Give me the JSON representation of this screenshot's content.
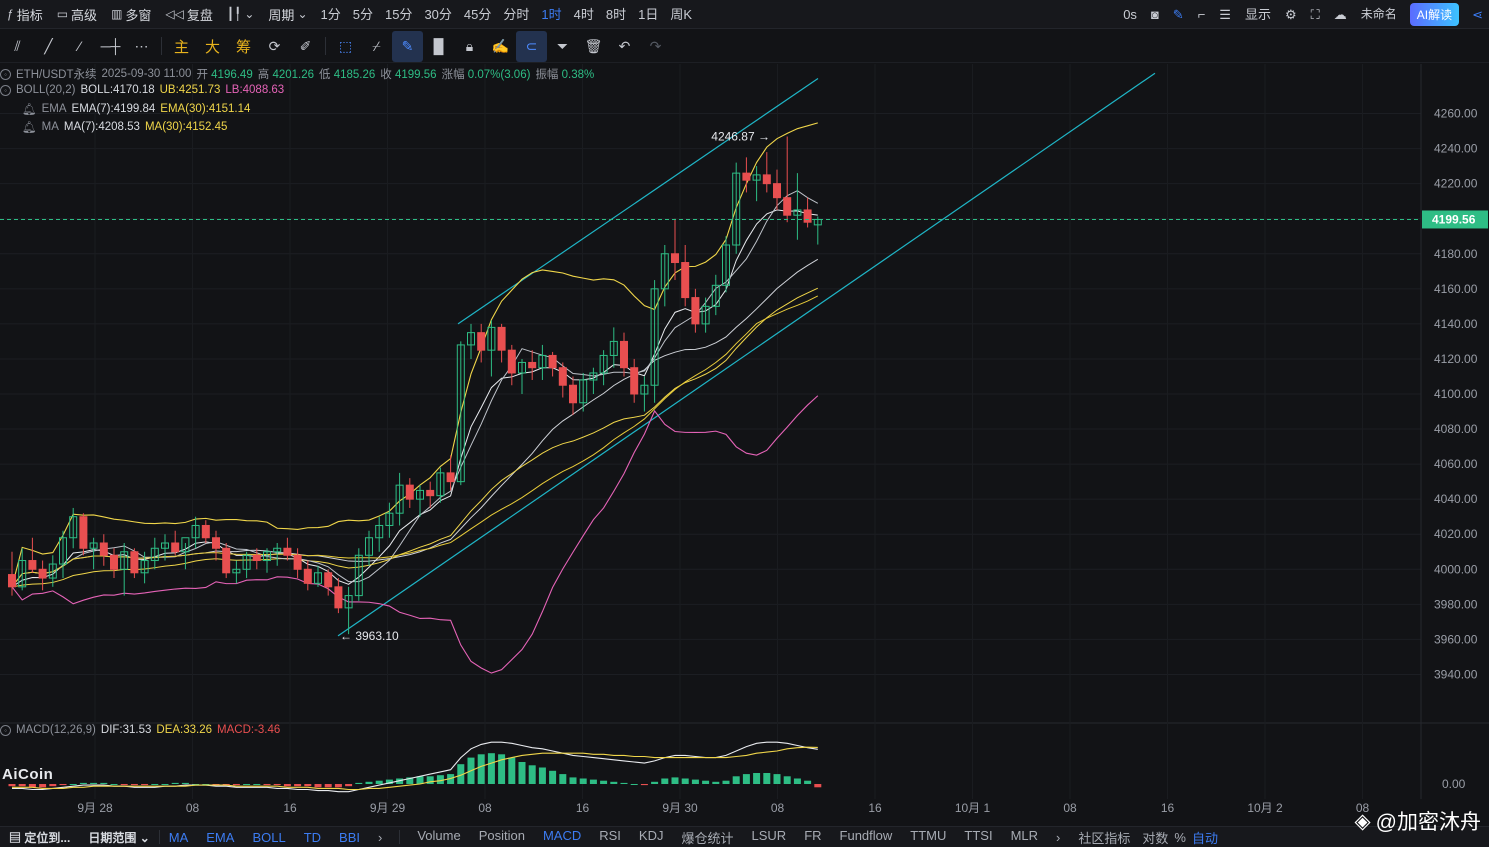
{
  "topbar": {
    "indicators": "指标",
    "advanced": "高级",
    "multiwindow": "多窗",
    "replay": "复盘",
    "period": "周期",
    "timeframes": [
      "1分",
      "5分",
      "15分",
      "30分",
      "45分",
      "分时",
      "1时",
      "4时",
      "8时",
      "1日",
      "周K"
    ],
    "active_timeframe": "1时",
    "countdown": "0s",
    "display": "显示",
    "unnamed": "未命名",
    "ai_read": "AI解读"
  },
  "tools": {
    "main": "主",
    "large": "大",
    "chips": "筹"
  },
  "legend": {
    "symbol": "ETH/USDT永续",
    "datetime": "2025-09-30 11:00",
    "open_label": "开",
    "open": "4196.49",
    "high_label": "高",
    "high": "4201.26",
    "low_label": "低",
    "low": "4185.26",
    "close_label": "收",
    "close": "4199.56",
    "change_label": "涨幅",
    "change": "0.07%(3.06)",
    "amp_label": "振幅",
    "amp": "0.38%",
    "boll_name": "BOLL(20,2)",
    "boll": "BOLL:4170.18",
    "ub": "UB:4251.73",
    "lb": "LB:4088.63",
    "ema_name": "EMA",
    "ema7": "EMA(7):4199.84",
    "ema30": "EMA(30):4151.14",
    "ma_name": "MA",
    "ma7": "MA(7):4208.53",
    "ma30": "MA(30):4152.45",
    "macd_name": "MACD(12,26,9)",
    "dif": "DIF:31.53",
    "dea": "DEA:33.26",
    "macd": "MACD:-3.46"
  },
  "annotations": {
    "high_mark": "4246.87 →",
    "low_mark": "← 3963.10",
    "last_price": "4199.56"
  },
  "price_axis": [
    "4260.00",
    "4240.00",
    "4220.00",
    "4200.00",
    "4180.00",
    "4160.00",
    "4140.00",
    "4120.00",
    "4100.00",
    "4080.00",
    "4060.00",
    "4040.00",
    "4020.00",
    "4000.00",
    "3980.00",
    "3960.00",
    "3940.00"
  ],
  "macd_axis": [
    "0.00"
  ],
  "time_axis": [
    "9月 28",
    "08",
    "16",
    "9月 29",
    "08",
    "16",
    "9月 30",
    "08",
    "16",
    "10月 1",
    "08",
    "16",
    "10月 2",
    "08"
  ],
  "bottombar": {
    "locate": "定位到...",
    "date_range": "日期范围",
    "tabs": [
      "MA",
      "EMA",
      "BOLL",
      "TD",
      "BBI"
    ],
    "sub_tabs": [
      "Volume",
      "Position",
      "MACD",
      "RSI",
      "KDJ",
      "爆仓统计",
      "LSUR",
      "FR",
      "Fundflow",
      "TTMU",
      "TTSI",
      "MLR"
    ],
    "community": "社区指标",
    "log": "对数",
    "pct": "%",
    "auto": "自动"
  },
  "brand": {
    "logo": "AiCoin",
    "watermark": "@加密沐舟"
  },
  "colors": {
    "up": "#2ebd85",
    "down": "#e84f50",
    "accent": "#3c7cf2",
    "channel": "#1fb5c6",
    "ub_line": "#f0d64a",
    "lb_line": "#e563b7"
  },
  "chart_data": {
    "type": "candlestick",
    "symbol": "ETH/USDT永续",
    "interval": "1h",
    "ylim": [
      3930,
      4270
    ],
    "last_price": 4199.56,
    "high_mark": 4246.87,
    "low_mark": 3963.1,
    "candles": [
      [
        3997,
        4010,
        3985,
        3990
      ],
      [
        3990,
        4012,
        3988,
        4005
      ],
      [
        4005,
        4018,
        3998,
        4000
      ],
      [
        4000,
        4005,
        3988,
        3995
      ],
      [
        3995,
        4008,
        3990,
        4003
      ],
      [
        4003,
        4022,
        3995,
        4018
      ],
      [
        4018,
        4035,
        4012,
        4030
      ],
      [
        4030,
        4032,
        4008,
        4012
      ],
      [
        4012,
        4018,
        4000,
        4015
      ],
      [
        4015,
        4020,
        4002,
        4008
      ],
      [
        4008,
        4012,
        3995,
        4000
      ],
      [
        4000,
        4015,
        3985,
        4010
      ],
      [
        4010,
        4012,
        3995,
        3998
      ],
      [
        3998,
        4010,
        3992,
        4005
      ],
      [
        4005,
        4018,
        4000,
        4012
      ],
      [
        4012,
        4020,
        4005,
        4015
      ],
      [
        4015,
        4022,
        4008,
        4010
      ],
      [
        4010,
        4015,
        4000,
        4018
      ],
      [
        4018,
        4030,
        4012,
        4025
      ],
      [
        4025,
        4028,
        4015,
        4018
      ],
      [
        4018,
        4022,
        4005,
        4012
      ],
      [
        4012,
        4015,
        3995,
        3998
      ],
      [
        3998,
        4005,
        3992,
        4000
      ],
      [
        4000,
        4010,
        3995,
        4008
      ],
      [
        4008,
        4012,
        4000,
        4005
      ],
      [
        4005,
        4012,
        3998,
        4010
      ],
      [
        4010,
        4015,
        4002,
        4012
      ],
      [
        4012,
        4018,
        4005,
        4008
      ],
      [
        4008,
        4012,
        3995,
        4000
      ],
      [
        4000,
        4005,
        3988,
        3992
      ],
      [
        3992,
        4002,
        3990,
        3998
      ],
      [
        3998,
        4000,
        3985,
        3990
      ],
      [
        3990,
        3995,
        3975,
        3978
      ],
      [
        3978,
        3990,
        3963,
        3985
      ],
      [
        3985,
        4012,
        3982,
        4008
      ],
      [
        4008,
        4022,
        4002,
        4018
      ],
      [
        4018,
        4030,
        4010,
        4025
      ],
      [
        4025,
        4038,
        4018,
        4032
      ],
      [
        4032,
        4055,
        4025,
        4048
      ],
      [
        4048,
        4052,
        4035,
        4040
      ],
      [
        4040,
        4048,
        4030,
        4045
      ],
      [
        4045,
        4050,
        4035,
        4042
      ],
      [
        4042,
        4058,
        4038,
        4055
      ],
      [
        4055,
        4065,
        4045,
        4050
      ],
      [
        4050,
        4130,
        4048,
        4128
      ],
      [
        4128,
        4140,
        4120,
        4135
      ],
      [
        4135,
        4140,
        4118,
        4125
      ],
      [
        4125,
        4142,
        4110,
        4138
      ],
      [
        4138,
        4140,
        4118,
        4125
      ],
      [
        4125,
        4128,
        4105,
        4112
      ],
      [
        4112,
        4120,
        4100,
        4118
      ],
      [
        4118,
        4125,
        4108,
        4115
      ],
      [
        4115,
        4128,
        4108,
        4122
      ],
      [
        4122,
        4124,
        4110,
        4115
      ],
      [
        4115,
        4118,
        4098,
        4105
      ],
      [
        4105,
        4110,
        4088,
        4095
      ],
      [
        4095,
        4112,
        4090,
        4108
      ],
      [
        4108,
        4115,
        4100,
        4112
      ],
      [
        4112,
        4125,
        4105,
        4122
      ],
      [
        4122,
        4138,
        4115,
        4130
      ],
      [
        4130,
        4135,
        4110,
        4115
      ],
      [
        4115,
        4120,
        4095,
        4100
      ],
      [
        4100,
        4110,
        4090,
        4105
      ],
      [
        4105,
        4165,
        4095,
        4160
      ],
      [
        4160,
        4185,
        4150,
        4180
      ],
      [
        4180,
        4200,
        4165,
        4175
      ],
      [
        4175,
        4185,
        4150,
        4155
      ],
      [
        4155,
        4160,
        4135,
        4140
      ],
      [
        4140,
        4155,
        4135,
        4150
      ],
      [
        4150,
        4168,
        4145,
        4162
      ],
      [
        4162,
        4190,
        4158,
        4185
      ],
      [
        4185,
        4232,
        4180,
        4226
      ],
      [
        4226,
        4235,
        4215,
        4222
      ],
      [
        4222,
        4230,
        4210,
        4225
      ],
      [
        4225,
        4238,
        4215,
        4220
      ],
      [
        4220,
        4228,
        4205,
        4212
      ],
      [
        4212,
        4246.87,
        4198,
        4202
      ],
      [
        4202,
        4226,
        4188,
        4205
      ],
      [
        4205,
        4212,
        4195,
        4198
      ],
      [
        4196.49,
        4201.26,
        4185.26,
        4199.56
      ]
    ],
    "macd_hist": [
      -2,
      -2,
      -3,
      -3,
      -2,
      -1,
      0,
      1,
      1,
      1,
      0,
      -1,
      -1,
      -1,
      0,
      0,
      1,
      1,
      0,
      0,
      -1,
      -1,
      -1,
      0,
      0,
      -1,
      -1,
      -2,
      -2,
      -2,
      -3,
      -3,
      -3,
      -2,
      1,
      2,
      3,
      4,
      5,
      6,
      7,
      7,
      8,
      9,
      18,
      24,
      27,
      28,
      27,
      24,
      20,
      17,
      15,
      12,
      9,
      6,
      5,
      4,
      3,
      2,
      1,
      0,
      -1,
      2,
      5,
      6,
      5,
      4,
      3,
      2,
      3,
      7,
      9,
      10,
      10,
      9,
      7,
      5,
      3,
      -3
    ],
    "macd_dif": [
      -4,
      -4,
      -5,
      -5,
      -4,
      -3,
      -2,
      -1,
      -1,
      -1,
      -2,
      -2,
      -3,
      -3,
      -3,
      -2,
      -2,
      -1,
      -1,
      -1,
      -2,
      -2,
      -3,
      -3,
      -3,
      -3,
      -4,
      -4,
      -5,
      -5,
      -6,
      -6,
      -7,
      -7,
      -5,
      -3,
      -1,
      1,
      3,
      5,
      7,
      9,
      11,
      13,
      24,
      32,
      36,
      38,
      38,
      37,
      35,
      33,
      32,
      30,
      28,
      26,
      25,
      24,
      23,
      22,
      21,
      20,
      19,
      21,
      24,
      26,
      26,
      25,
      24,
      24,
      26,
      30,
      34,
      37,
      38,
      38,
      37,
      35,
      33,
      31.53
    ],
    "macd_dea": [
      -3,
      -3,
      -3,
      -4,
      -4,
      -4,
      -3,
      -3,
      -2,
      -2,
      -2,
      -2,
      -2,
      -2,
      -2,
      -2,
      -2,
      -2,
      -1,
      -1,
      -1,
      -1,
      -2,
      -2,
      -2,
      -2,
      -2,
      -3,
      -3,
      -3,
      -4,
      -4,
      -4,
      -5,
      -5,
      -4,
      -4,
      -3,
      -2,
      -1,
      0,
      2,
      3,
      5,
      8,
      12,
      16,
      19,
      22,
      24,
      26,
      27,
      28,
      28,
      28,
      28,
      28,
      27,
      27,
      26,
      26,
      25,
      25,
      24,
      24,
      24,
      24,
      24,
      24,
      24,
      24,
      25,
      26,
      28,
      29,
      30,
      32,
      33,
      33.5,
      33.26
    ]
  }
}
